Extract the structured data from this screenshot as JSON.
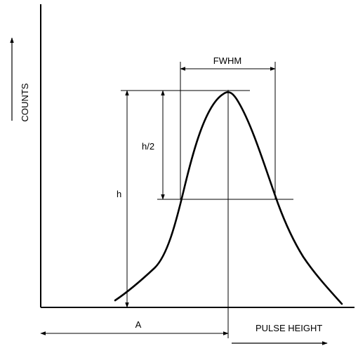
{
  "diagram": {
    "labels": {
      "y_axis": "COUNTS",
      "x_axis": "PULSE HEIGHT",
      "fwhm": "FWHM",
      "half_height": "h/2",
      "height": "h",
      "peak_position": "A"
    }
  }
}
